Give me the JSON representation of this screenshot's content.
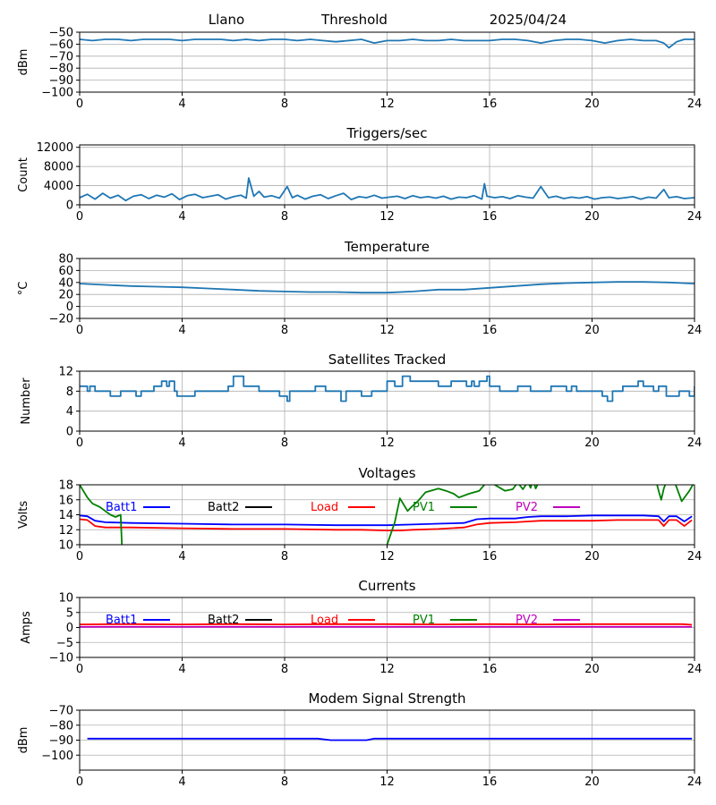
{
  "header": {
    "station": "Llano",
    "mode": "Threshold",
    "date": "2025/04/24"
  },
  "colors": {
    "default": "#1f77b4",
    "Batt1": "#0000ff",
    "Batt2": "#000000",
    "Load": "#ff0000",
    "PV1": "#008000",
    "PV2": "#bf00bf"
  },
  "chart_data": [
    {
      "id": "threshold",
      "type": "line",
      "title": "",
      "ylabel": "dBm",
      "xlim": [
        0,
        24
      ],
      "xticks": [
        0,
        4,
        8,
        12,
        16,
        20,
        24
      ],
      "ylim": [
        -100,
        -50
      ],
      "yticks": [
        -100,
        -90,
        -80,
        -70,
        -60,
        -50
      ],
      "grid": true,
      "series": [
        {
          "color": "default",
          "x": [
            0,
            0.5,
            1,
            1.5,
            2,
            2.5,
            3,
            3.5,
            4,
            4.5,
            5,
            5.5,
            6,
            6.5,
            7,
            7.5,
            8,
            8.5,
            9,
            9.5,
            10,
            10.5,
            11,
            11.5,
            12,
            12.5,
            13,
            13.5,
            14,
            14.5,
            15,
            15.5,
            16,
            16.5,
            17,
            17.5,
            18,
            18.5,
            19,
            19.5,
            20,
            20.5,
            21,
            21.5,
            22,
            22.5,
            22.8,
            23,
            23.3,
            23.6,
            24
          ],
          "y": [
            -56,
            -57,
            -56,
            -56,
            -57,
            -56,
            -56,
            -56,
            -57,
            -56,
            -56,
            -56,
            -57,
            -56,
            -57,
            -56,
            -56,
            -57,
            -56,
            -57,
            -58,
            -57,
            -56,
            -59,
            -57,
            -57,
            -56,
            -57,
            -57,
            -56,
            -57,
            -57,
            -57,
            -56,
            -56,
            -57,
            -59,
            -57,
            -56,
            -56,
            -57,
            -59,
            -57,
            -56,
            -57,
            -57,
            -59,
            -63,
            -58,
            -56,
            -56
          ]
        }
      ]
    },
    {
      "id": "triggers",
      "type": "line",
      "title": "Triggers/sec",
      "ylabel": "Count",
      "xlim": [
        0,
        24
      ],
      "xticks": [
        0,
        4,
        8,
        12,
        16,
        20,
        24
      ],
      "ylim": [
        0,
        12500
      ],
      "yticks": [
        0,
        4000,
        8000,
        12000
      ],
      "grid": true,
      "series": [
        {
          "color": "default",
          "x": [
            0,
            0.3,
            0.6,
            0.9,
            1.2,
            1.5,
            1.8,
            2.1,
            2.4,
            2.7,
            3,
            3.3,
            3.6,
            3.9,
            4.2,
            4.5,
            4.8,
            5.1,
            5.4,
            5.7,
            6,
            6.3,
            6.5,
            6.6,
            6.8,
            7,
            7.2,
            7.5,
            7.8,
            8.1,
            8.3,
            8.5,
            8.8,
            9.1,
            9.4,
            9.7,
            10,
            10.3,
            10.6,
            10.9,
            11.2,
            11.5,
            11.8,
            12.1,
            12.4,
            12.7,
            13,
            13.3,
            13.6,
            13.9,
            14.2,
            14.5,
            14.8,
            15.1,
            15.4,
            15.7,
            15.8,
            15.9,
            16.2,
            16.5,
            16.8,
            17.1,
            17.4,
            17.7,
            18,
            18.3,
            18.6,
            18.9,
            19.2,
            19.5,
            19.8,
            20.1,
            20.4,
            20.7,
            21,
            21.3,
            21.6,
            21.9,
            22.2,
            22.5,
            22.8,
            23,
            23.3,
            23.6,
            24
          ],
          "y": [
            1500,
            2200,
            1200,
            2400,
            1400,
            2000,
            900,
            1800,
            2100,
            1300,
            2000,
            1600,
            2300,
            1100,
            1900,
            2200,
            1500,
            1800,
            2100,
            1200,
            1700,
            2000,
            1400,
            5600,
            1800,
            2800,
            1600,
            1900,
            1400,
            3800,
            1500,
            2000,
            1200,
            1800,
            2100,
            1300,
            1900,
            2400,
            1100,
            1700,
            1500,
            2000,
            1400,
            1600,
            1800,
            1300,
            1900,
            1500,
            1700,
            1400,
            1800,
            1200,
            1600,
            1500,
            1900,
            1200,
            4400,
            1800,
            1500,
            1700,
            1300,
            1900,
            1600,
            1400,
            3800,
            1500,
            1800,
            1300,
            1600,
            1400,
            1700,
            1200,
            1500,
            1600,
            1300,
            1500,
            1700,
            1200,
            1600,
            1400,
            3200,
            1500,
            1700,
            1300,
            1500
          ]
        }
      ]
    },
    {
      "id": "temperature",
      "type": "line",
      "title": "Temperature",
      "ylabel": "°C",
      "xlim": [
        0,
        24
      ],
      "xticks": [
        0,
        4,
        8,
        12,
        16,
        20,
        24
      ],
      "ylim": [
        -20,
        80
      ],
      "yticks": [
        -20,
        0,
        20,
        40,
        60,
        80
      ],
      "grid": true,
      "series": [
        {
          "color": "default",
          "x": [
            0,
            1,
            2,
            3,
            4,
            5,
            6,
            7,
            8,
            9,
            10,
            11,
            12,
            13,
            14,
            15,
            16,
            17,
            18,
            19,
            20,
            21,
            22,
            23,
            24
          ],
          "y": [
            38,
            36,
            34,
            33,
            32,
            30,
            28,
            26,
            25,
            24,
            24,
            23,
            23,
            25,
            28,
            28,
            31,
            34,
            37,
            39,
            40,
            41,
            41,
            40,
            38
          ]
        }
      ]
    },
    {
      "id": "satellites",
      "type": "line",
      "title": "Satellites Tracked",
      "ylabel": "Number",
      "xlim": [
        0,
        24
      ],
      "xticks": [
        0,
        4,
        8,
        12,
        16,
        20,
        24
      ],
      "ylim": [
        0,
        12
      ],
      "yticks": [
        0,
        4,
        8,
        12
      ],
      "grid": true,
      "series": [
        {
          "color": "default",
          "step": true,
          "x": [
            0,
            0.3,
            0.4,
            0.6,
            1,
            1.2,
            1.6,
            2,
            2.2,
            2.4,
            2.9,
            3.1,
            3.2,
            3.4,
            3.5,
            3.7,
            3.8,
            4.5,
            4.8,
            5.8,
            6,
            6.4,
            6.7,
            7,
            7.4,
            7.8,
            8.1,
            8.2,
            8.6,
            9.2,
            9.6,
            10,
            10.2,
            10.4,
            11,
            11.4,
            11.7,
            12,
            12.3,
            12.6,
            12.9,
            13.5,
            14,
            14.5,
            15.1,
            15.3,
            15.4,
            15.6,
            15.9,
            16,
            16.2,
            16.4,
            17,
            17.1,
            17.6,
            18.4,
            18.9,
            19,
            19.2,
            19.4,
            19.9,
            20.4,
            20.6,
            20.8,
            21.2,
            21.8,
            22,
            22.4,
            22.6,
            22.9,
            23.4,
            23.8,
            24
          ],
          "y": [
            9,
            8,
            9,
            8,
            8,
            7,
            8,
            8,
            7,
            8,
            9,
            9,
            10,
            9,
            10,
            8,
            7,
            8,
            8,
            9,
            11,
            9,
            9,
            8,
            8,
            7,
            6,
            8,
            8,
            9,
            8,
            8,
            6,
            8,
            7,
            8,
            8,
            10,
            9,
            11,
            10,
            10,
            9,
            10,
            9,
            10,
            9,
            10,
            11,
            9,
            9,
            8,
            8,
            9,
            8,
            9,
            9,
            8,
            9,
            8,
            8,
            7,
            6,
            8,
            9,
            10,
            9,
            8,
            9,
            7,
            8,
            7,
            9
          ]
        }
      ]
    },
    {
      "id": "voltages",
      "type": "line",
      "title": "Voltages",
      "ylabel": "Volts",
      "xlim": [
        0,
        24
      ],
      "xticks": [
        0,
        4,
        8,
        12,
        16,
        20,
        24
      ],
      "ylim": [
        10,
        18
      ],
      "yticks": [
        10,
        12,
        14,
        16,
        18
      ],
      "grid": true,
      "legend": "top",
      "legend_entries": [
        "Batt1",
        "Batt2",
        "Load",
        "PV1",
        "PV2"
      ],
      "series": [
        {
          "name": "Batt1",
          "color": "Batt1",
          "x": [
            0,
            0.3,
            0.6,
            1,
            2,
            4,
            6,
            8,
            10,
            12,
            13,
            14,
            15,
            15.5,
            16,
            17,
            17.5,
            18,
            19,
            20,
            21,
            22,
            22.6,
            22.8,
            23,
            23.3,
            23.6,
            23.9
          ],
          "y": [
            13.9,
            13.8,
            13.2,
            13,
            12.9,
            12.8,
            12.7,
            12.7,
            12.6,
            12.6,
            12.7,
            12.8,
            12.9,
            13.4,
            13.5,
            13.5,
            13.7,
            13.8,
            13.8,
            13.9,
            13.9,
            13.9,
            13.8,
            13.1,
            13.8,
            13.8,
            13.1,
            13.8
          ]
        },
        {
          "name": "Load",
          "color": "Load",
          "x": [
            0,
            0.3,
            0.6,
            1,
            2,
            4,
            6,
            8,
            10,
            11,
            12,
            12.5,
            13,
            14,
            15,
            15.5,
            16,
            17,
            17.5,
            18,
            19,
            20,
            21,
            22,
            22.6,
            22.8,
            23,
            23.3,
            23.6,
            23.9
          ],
          "y": [
            13.4,
            13.3,
            12.5,
            12.3,
            12.3,
            12.2,
            12.1,
            12.1,
            12.0,
            12.0,
            11.9,
            11.9,
            12.0,
            12.1,
            12.3,
            12.7,
            12.9,
            13.0,
            13.1,
            13.2,
            13.2,
            13.2,
            13.3,
            13.3,
            13.3,
            12.5,
            13.3,
            13.3,
            12.5,
            13.3
          ]
        },
        {
          "name": "PV1",
          "color": "PV1",
          "segments": true,
          "x": [
            [
              0,
              0.3,
              0.5,
              0.8,
              1,
              1.2,
              1.4,
              1.6,
              1.65
            ],
            [
              12,
              12.3,
              12.5,
              12.8,
              13,
              13.2,
              13.5,
              14,
              14.3,
              14.6,
              14.8,
              15.2,
              15.6,
              16,
              16.2,
              16.6,
              16.9,
              17.1,
              17.3,
              17.5,
              17.6,
              17.7,
              17.8,
              17.9
            ],
            [
              22.5,
              22.6,
              22.7,
              22.8,
              22.9,
              23.2,
              23.5,
              23.8,
              24
            ]
          ],
          "y": [
            [
              18,
              16.3,
              15.5,
              15,
              14.5,
              14,
              13.7,
              14,
              10
            ],
            [
              10,
              13,
              16.2,
              14.5,
              15.2,
              15.8,
              17,
              17.5,
              17.2,
              16.8,
              16.3,
              16.8,
              17.2,
              18.8,
              18,
              17.2,
              17.4,
              18.3,
              17.4,
              18.4,
              17.6,
              18.6,
              17.5,
              18.2
            ],
            [
              18.5,
              17.2,
              16,
              17.5,
              18.4,
              18.6,
              15.8,
              17.2,
              18.4
            ]
          ]
        }
      ]
    },
    {
      "id": "currents",
      "type": "line",
      "title": "Currents",
      "ylabel": "Amps",
      "xlim": [
        0,
        24
      ],
      "xticks": [
        0,
        4,
        8,
        12,
        16,
        20,
        24
      ],
      "ylim": [
        -10,
        10
      ],
      "yticks": [
        -10,
        -5,
        0,
        5,
        10
      ],
      "grid": true,
      "legend": "top",
      "legend_entries": [
        "Batt1",
        "Batt2",
        "Load",
        "PV1",
        "PV2"
      ],
      "series": [
        {
          "name": "Load",
          "color": "Load",
          "x": [
            0,
            2,
            4,
            6,
            8,
            10,
            12,
            14,
            16,
            18,
            20,
            22,
            23.5,
            23.9
          ],
          "y": [
            1,
            1.1,
            1,
            1.1,
            1,
            1.1,
            1.1,
            1,
            1.1,
            1,
            1.1,
            1.1,
            1.1,
            0.9
          ]
        },
        {
          "name": "PV2",
          "color": "PV2",
          "x": [
            0,
            23.9
          ],
          "y": [
            0.2,
            0.2
          ]
        }
      ]
    },
    {
      "id": "modem",
      "type": "line",
      "title": "Modem Signal Strength",
      "ylabel": "dBm",
      "xlim": [
        0,
        24
      ],
      "xticks": [
        0,
        4,
        8,
        12,
        16,
        20,
        24
      ],
      "ylim": [
        -110,
        -70
      ],
      "yticks": [
        -100,
        -90,
        -80,
        -70
      ],
      "grid": true,
      "series": [
        {
          "color": "Batt1",
          "x": [
            0.3,
            4,
            8,
            9.3,
            9.8,
            10.5,
            11.2,
            11.5,
            12,
            16,
            20,
            23.9
          ],
          "y": [
            -89,
            -89,
            -89,
            -89,
            -90,
            -90,
            -90,
            -89,
            -89,
            -89,
            -89,
            -89
          ]
        }
      ]
    }
  ]
}
